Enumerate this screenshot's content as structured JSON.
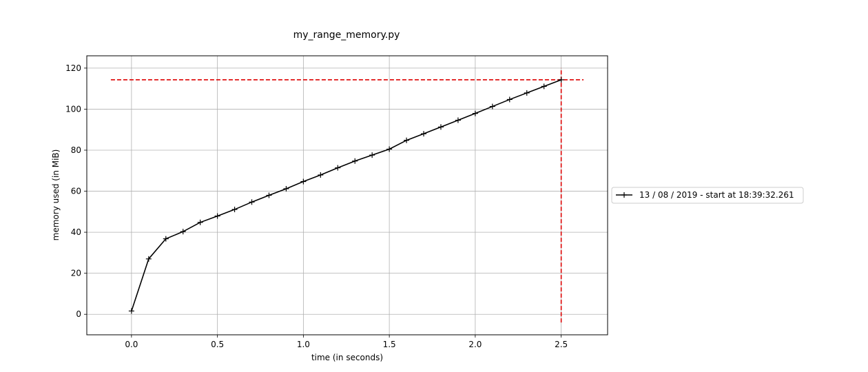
{
  "chart_data": {
    "type": "line",
    "title": "my_range_memory.py",
    "xlabel": "time (in seconds)",
    "ylabel": "memory used (in MiB)",
    "xlim": [
      -0.26,
      2.77
    ],
    "ylim": [
      -10,
      126
    ],
    "xticks": [
      0.0,
      0.5,
      1.0,
      1.5,
      2.0,
      2.5
    ],
    "xtick_labels": [
      "0.0",
      "0.5",
      "1.0",
      "1.5",
      "2.0",
      "2.5"
    ],
    "yticks": [
      0,
      20,
      40,
      60,
      80,
      100,
      120
    ],
    "ytick_labels": [
      "0",
      "20",
      "40",
      "60",
      "80",
      "100",
      "120"
    ],
    "grid": true,
    "legend_position": "right",
    "series": [
      {
        "name": "13 / 08 / 2019 - start at 18:39:32.261",
        "color": "#000000",
        "marker": "plus",
        "x": [
          0.0,
          0.1,
          0.2,
          0.3,
          0.4,
          0.5,
          0.6,
          0.7,
          0.8,
          0.9,
          1.0,
          1.1,
          1.2,
          1.3,
          1.4,
          1.5,
          1.6,
          1.7,
          1.8,
          1.9,
          2.0,
          2.1,
          2.2,
          2.3,
          2.4,
          2.5
        ],
        "y": [
          1.6,
          27.0,
          36.8,
          40.3,
          44.8,
          47.9,
          51.1,
          54.7,
          58.0,
          61.2,
          64.7,
          67.9,
          71.4,
          74.7,
          77.6,
          80.5,
          84.8,
          88.0,
          91.3,
          94.6,
          97.9,
          101.3,
          104.7,
          107.9,
          111.1,
          114.3
        ]
      }
    ],
    "peak_markers": {
      "color": "#dd0000",
      "horizontal": {
        "y": 114.3,
        "x_from": -0.12,
        "x_to": 2.63
      },
      "vertical": {
        "x": 2.5,
        "y_from": -4,
        "y_to": 120
      }
    }
  }
}
